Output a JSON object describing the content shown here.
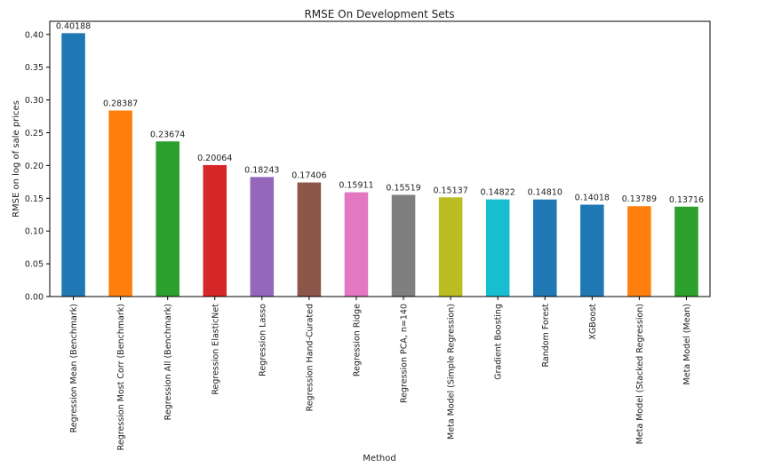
{
  "chart_data": {
    "type": "bar",
    "title": "RMSE On Development Sets",
    "xlabel": "Method",
    "ylabel": "RMSE on log of sale prices",
    "ylim": [
      0,
      0.42
    ],
    "yticks": [
      "0.00",
      "0.05",
      "0.10",
      "0.15",
      "0.20",
      "0.25",
      "0.30",
      "0.35",
      "0.40"
    ],
    "grid": false,
    "legend": "none",
    "categories": [
      "Regression Mean (Benchmark)",
      "Regression Most Corr (Benchmark)",
      "Regression All (Benchmark)",
      "Regression ElasticNet",
      "Regression Lasso",
      "Regression Hand-Curated",
      "Regression Ridge",
      "Regression PCA, n=140",
      "Meta Model (Simple Regression)",
      "Gradient Boosting",
      "Random Forest",
      "XGBoost",
      "Meta Model (Stacked Regression)",
      "Meta Model (Mean)"
    ],
    "values": [
      0.40188,
      0.28387,
      0.23674,
      0.20064,
      0.18243,
      0.17406,
      0.15911,
      0.15519,
      0.15137,
      0.14822,
      0.1481,
      0.14018,
      0.13789,
      0.13716
    ],
    "value_labels": [
      "0.40188",
      "0.28387",
      "0.23674",
      "0.20064",
      "0.18243",
      "0.17406",
      "0.15911",
      "0.15519",
      "0.15137",
      "0.14822",
      "0.14810",
      "0.14018",
      "0.13789",
      "0.13716"
    ],
    "colors": [
      "#1f77b4",
      "#ff7f0e",
      "#2ca02c",
      "#d62728",
      "#9467bd",
      "#8c564b",
      "#e377c2",
      "#7f7f7f",
      "#bcbd22",
      "#17becf",
      "#1f77b4",
      "#1f77b4",
      "#ff7f0e",
      "#2ca02c"
    ]
  }
}
